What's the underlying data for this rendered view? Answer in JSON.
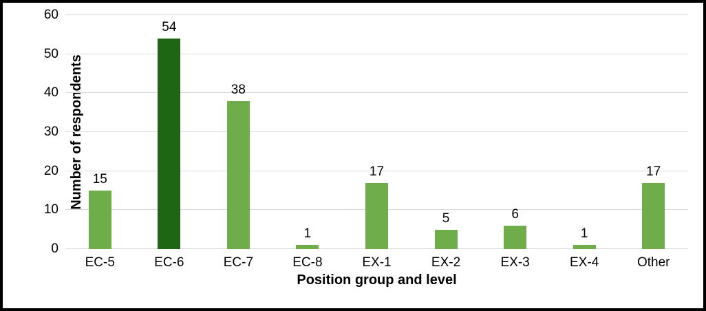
{
  "chart_data": {
    "type": "bar",
    "title": "",
    "xlabel": "Position group and level",
    "ylabel": "Number of respondents",
    "categories": [
      "EC-5",
      "EC-6",
      "EC-7",
      "EC-8",
      "EX-1",
      "EX-2",
      "EX-3",
      "EX-4",
      "Other"
    ],
    "values": [
      15,
      54,
      38,
      1,
      17,
      5,
      6,
      1,
      17
    ],
    "value_labels": [
      "15",
      "54",
      "38",
      "1",
      "17",
      "5",
      "6",
      "1",
      "17"
    ],
    "ylim": [
      0,
      60
    ],
    "yticks": [
      0,
      10,
      20,
      30,
      40,
      50,
      60
    ],
    "grid": "horizontal",
    "legend_position": "none",
    "colors": {
      "bar_default": "#6FAC4A",
      "bar_highlight": "#1E6613",
      "gridline": "#D9D9D9",
      "text": "#000000",
      "frame_border": "#000000",
      "background": "#FFFFFF"
    },
    "highlight_category": "EC-6",
    "highlight_index": 1
  }
}
